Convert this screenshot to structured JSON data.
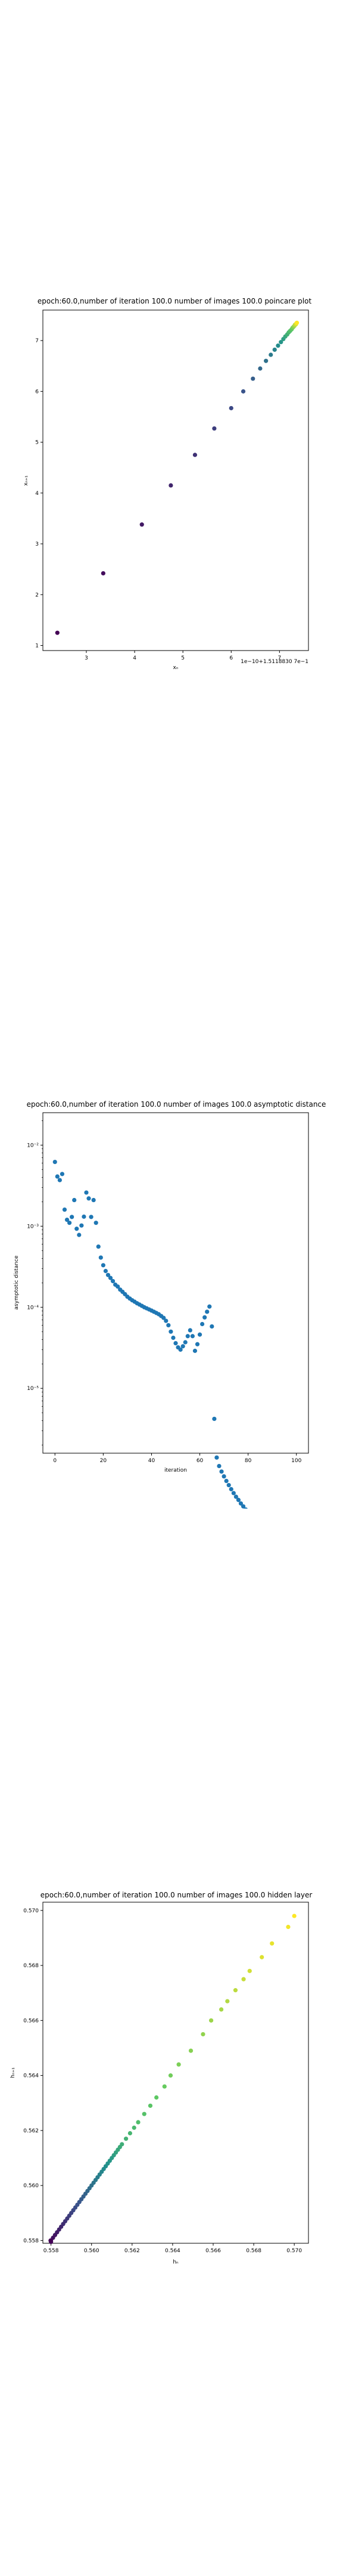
{
  "charts": [
    {
      "type": "scatter",
      "title": "epoch:60.0,number of iteration 100.0  number of images 100.0 poincare plot",
      "xlabel": "xₙ",
      "ylabel": "xₙ₊₁",
      "offset_text": "1e−10+1.5118830 7e−1",
      "xticks": [
        "3",
        "4",
        "5",
        "6",
        "7"
      ],
      "yticks": [
        "1",
        "2",
        "3",
        "4",
        "5",
        "6",
        "7"
      ],
      "xlim": [
        2.1,
        7.6
      ],
      "ylim": [
        0.9,
        7.6
      ],
      "grid": false,
      "colormap": "viridis",
      "points": [
        [
          2.4,
          1.25
        ],
        [
          3.35,
          2.42
        ],
        [
          4.15,
          3.38
        ],
        [
          4.75,
          4.15
        ],
        [
          5.25,
          4.75
        ],
        [
          5.65,
          5.27
        ],
        [
          6.0,
          5.67
        ],
        [
          6.25,
          6.0
        ],
        [
          6.45,
          6.25
        ],
        [
          6.6,
          6.45
        ],
        [
          6.72,
          6.6
        ],
        [
          6.82,
          6.72
        ],
        [
          6.9,
          6.82
        ],
        [
          6.97,
          6.9
        ],
        [
          7.03,
          6.97
        ],
        [
          7.08,
          7.03
        ],
        [
          7.12,
          7.08
        ],
        [
          7.16,
          7.12
        ],
        [
          7.19,
          7.16
        ],
        [
          7.22,
          7.19
        ],
        [
          7.25,
          7.22
        ],
        [
          7.27,
          7.25
        ],
        [
          7.29,
          7.27
        ],
        [
          7.31,
          7.29
        ],
        [
          7.32,
          7.31
        ],
        [
          7.34,
          7.32
        ],
        [
          7.35,
          7.34
        ],
        [
          7.36,
          7.35
        ]
      ]
    },
    {
      "type": "scatter",
      "title": "epoch:60.0,number of iteration 100.0  number of images 100.0 asymptotic distance",
      "xlabel": "iteration",
      "ylabel": "asymptotic distance",
      "yscale": "log",
      "xticks": [
        "0",
        "20",
        "40",
        "60",
        "80",
        "100"
      ],
      "xtick_values": [
        0,
        20,
        40,
        60,
        80,
        100
      ],
      "yticks": [
        "10⁻⁵",
        "10⁻⁴",
        "10⁻³",
        "10⁻²"
      ],
      "ytick_exponents": [
        -5,
        -4,
        -3,
        -2
      ],
      "xlim": [
        -5,
        105
      ],
      "ylim_exp": [
        -5.8,
        -1.6
      ],
      "grid": false,
      "color": "#1f77b4",
      "points": [
        [
          0,
          0.0062
        ],
        [
          1,
          0.0041
        ],
        [
          2,
          0.0037
        ],
        [
          3,
          0.0044
        ],
        [
          4,
          0.0016
        ],
        [
          5,
          0.0012
        ],
        [
          6,
          0.0011
        ],
        [
          7,
          0.0013
        ],
        [
          8,
          0.0021
        ],
        [
          9,
          0.00093
        ],
        [
          10,
          0.00078
        ],
        [
          11,
          0.00102
        ],
        [
          12,
          0.00131
        ],
        [
          13,
          0.0026
        ],
        [
          14,
          0.0022
        ],
        [
          15,
          0.0013
        ],
        [
          16,
          0.0021
        ],
        [
          17,
          0.0011
        ],
        [
          18,
          0.00056
        ],
        [
          19,
          0.00041
        ],
        [
          20,
          0.00033
        ],
        [
          21,
          0.00028
        ],
        [
          22,
          0.00025
        ],
        [
          23,
          0.00023
        ],
        [
          24,
          0.00021
        ],
        [
          25,
          0.00019
        ],
        [
          26,
          0.00018
        ],
        [
          27,
          0.000165
        ],
        [
          28,
          0.000155
        ],
        [
          29,
          0.000145
        ],
        [
          30,
          0.000135
        ],
        [
          31,
          0.000128
        ],
        [
          32,
          0.000122
        ],
        [
          33,
          0.000117
        ],
        [
          34,
          0.000112
        ],
        [
          35,
          0.000108
        ],
        [
          36,
          0.000104
        ],
        [
          37,
          0.0001
        ],
        [
          38,
          9.7e-05
        ],
        [
          39,
          9.4e-05
        ],
        [
          40,
          9.1e-05
        ],
        [
          41,
          8.8e-05
        ],
        [
          42,
          8.5e-05
        ],
        [
          43,
          8.2e-05
        ],
        [
          44,
          7.8e-05
        ],
        [
          45,
          7.4e-05
        ],
        [
          46,
          6.8e-05
        ],
        [
          47,
          6e-05
        ],
        [
          48,
          5e-05
        ],
        [
          49,
          4.2e-05
        ],
        [
          50,
          3.6e-05
        ],
        [
          51,
          3.2e-05
        ],
        [
          52,
          3e-05
        ],
        [
          53,
          3.3e-05
        ],
        [
          54,
          3.7e-05
        ],
        [
          55,
          4.4e-05
        ],
        [
          56,
          5.2e-05
        ],
        [
          57,
          4.4e-05
        ],
        [
          58,
          2.9e-05
        ],
        [
          59,
          3.5e-05
        ],
        [
          60,
          4.6e-05
        ],
        [
          61,
          6.2e-05
        ],
        [
          62,
          7.5e-05
        ],
        [
          63,
          8.8e-05
        ],
        [
          64,
          0.000102
        ],
        [
          65,
          5.8e-05
        ],
        [
          66,
          4.2e-06
        ],
        [
          67,
          1.4e-06
        ],
        [
          68,
          1.1e-06
        ],
        [
          69,
          9.4e-07
        ],
        [
          70,
          8.2e-07
        ],
        [
          71,
          7.2e-07
        ],
        [
          72,
          6.4e-07
        ],
        [
          73,
          5.7e-07
        ],
        [
          74,
          5.1e-07
        ],
        [
          75,
          4.6e-07
        ],
        [
          76,
          4.2e-07
        ],
        [
          77,
          3.8e-07
        ],
        [
          78,
          3.5e-07
        ],
        [
          79,
          3.2e-07
        ],
        [
          80,
          2.95e-07
        ],
        [
          81,
          2.7e-07
        ],
        [
          82,
          2.5e-07
        ],
        [
          83,
          2.32e-07
        ],
        [
          84,
          2.15e-07
        ],
        [
          85,
          2e-07
        ],
        [
          86,
          1.87e-07
        ],
        [
          87,
          1.75e-07
        ],
        [
          88,
          1.64e-07
        ],
        [
          89,
          1.54e-07
        ],
        [
          90,
          1.45e-07
        ],
        [
          91,
          1.36e-07
        ],
        [
          92,
          1.28e-07
        ],
        [
          93,
          1.2e-07
        ],
        [
          94,
          1.13e-07
        ],
        [
          95,
          1.07e-07
        ],
        [
          96,
          1.01e-07
        ],
        [
          97,
          9.5e-08
        ],
        [
          98,
          9e-08
        ],
        [
          99,
          8.5e-08
        ]
      ]
    },
    {
      "type": "scatter",
      "title": "epoch:60.0,number of iteration 100.0  number of images 100.0 hidden layer",
      "xlabel": "hₙ",
      "ylabel": "hₙ₊₁",
      "xticks": [
        "0.558",
        "0.560",
        "0.562",
        "0.564",
        "0.566",
        "0.568",
        "0.570"
      ],
      "xtick_values": [
        0.558,
        0.56,
        0.562,
        0.564,
        0.566,
        0.568,
        0.57
      ],
      "yticks": [
        "0.558",
        "0.560",
        "0.562",
        "0.564",
        "0.566",
        "0.568",
        "0.570"
      ],
      "ytick_values": [
        0.558,
        0.56,
        0.562,
        0.564,
        0.566,
        0.568,
        0.57
      ],
      "xlim": [
        0.5576,
        0.5707
      ],
      "ylim": [
        0.5579,
        0.5703
      ],
      "grid": false,
      "colormap": "viridis",
      "points": [
        [
          0.57,
          0.5698
        ],
        [
          0.5697,
          0.5694
        ],
        [
          0.5689,
          0.5688
        ],
        [
          0.5684,
          0.5683
        ],
        [
          0.5678,
          0.5678
        ],
        [
          0.5675,
          0.5675
        ],
        [
          0.5671,
          0.5671
        ],
        [
          0.5667,
          0.5667
        ],
        [
          0.5664,
          0.5664
        ],
        [
          0.5659,
          0.566
        ],
        [
          0.5655,
          0.5655
        ],
        [
          0.5649,
          0.5649
        ],
        [
          0.5643,
          0.5644
        ],
        [
          0.5639,
          0.564
        ],
        [
          0.5636,
          0.5636
        ],
        [
          0.5632,
          0.5632
        ],
        [
          0.5629,
          0.5629
        ],
        [
          0.5626,
          0.5626
        ],
        [
          0.5623,
          0.5623
        ],
        [
          0.5621,
          0.5621
        ],
        [
          0.5619,
          0.5619
        ],
        [
          0.5617,
          0.5617
        ],
        [
          0.5615,
          0.5615
        ],
        [
          0.5614,
          0.5614
        ],
        [
          0.5613,
          0.5613
        ],
        [
          0.5612,
          0.5612
        ],
        [
          0.5611,
          0.5611
        ],
        [
          0.561,
          0.561
        ],
        [
          0.5609,
          0.5609
        ],
        [
          0.5608,
          0.5608
        ],
        [
          0.5607,
          0.5607
        ],
        [
          0.5606,
          0.5606
        ],
        [
          0.5605,
          0.5605
        ],
        [
          0.5604,
          0.5604
        ],
        [
          0.5603,
          0.5603
        ],
        [
          0.5602,
          0.5602
        ],
        [
          0.5601,
          0.5601
        ],
        [
          0.56,
          0.56
        ],
        [
          0.5599,
          0.5599
        ],
        [
          0.5598,
          0.5598
        ],
        [
          0.5597,
          0.5597
        ],
        [
          0.5596,
          0.5596
        ],
        [
          0.5595,
          0.5595
        ],
        [
          0.5594,
          0.5594
        ],
        [
          0.5593,
          0.5593
        ],
        [
          0.5592,
          0.5592
        ],
        [
          0.5591,
          0.5591
        ],
        [
          0.559,
          0.559
        ],
        [
          0.5589,
          0.5589
        ],
        [
          0.5588,
          0.5588
        ],
        [
          0.5587,
          0.5587
        ],
        [
          0.5586,
          0.5586
        ],
        [
          0.5585,
          0.5585
        ],
        [
          0.5584,
          0.5584
        ],
        [
          0.5583,
          0.5583
        ],
        [
          0.5582,
          0.5582
        ],
        [
          0.5581,
          0.5581
        ],
        [
          0.558,
          0.558
        ],
        [
          0.558,
          0.55795
        ],
        [
          0.55798,
          0.558
        ]
      ]
    }
  ]
}
